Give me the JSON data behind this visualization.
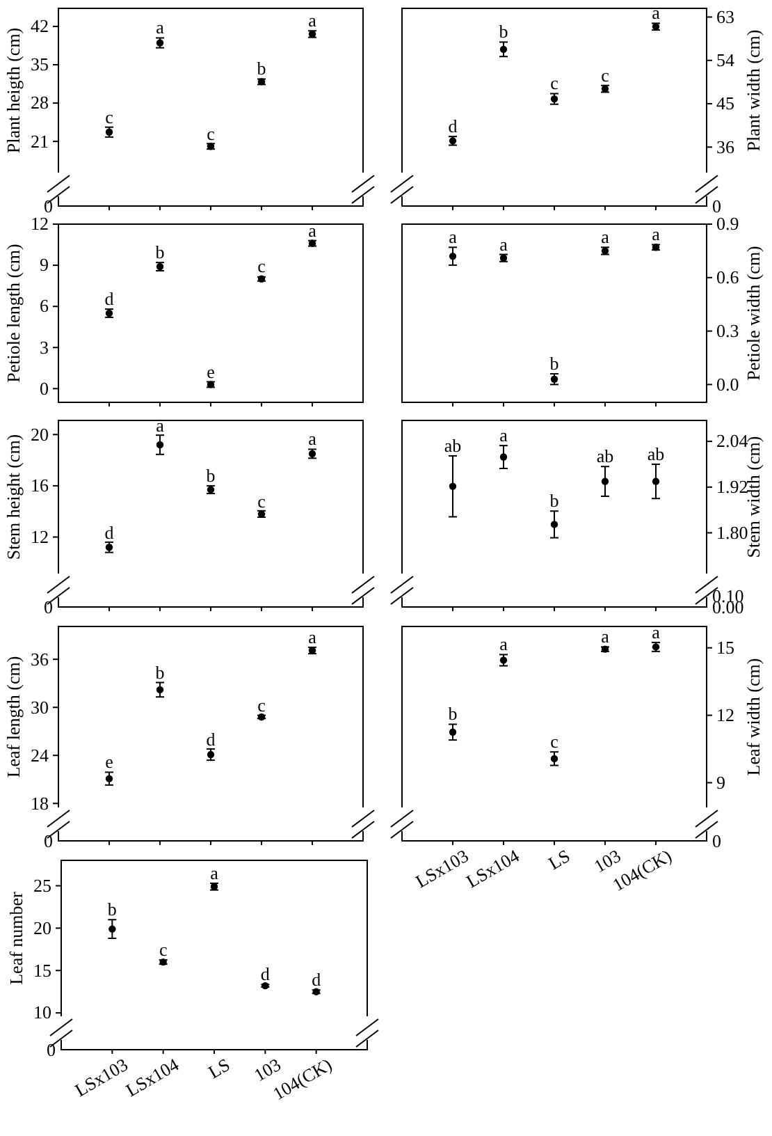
{
  "chart_data": [
    {
      "type": "scatter",
      "ylabel": "Plant heigth (cm)",
      "categories": [
        "LSx103",
        "LSx104",
        "LS",
        "103",
        "104(CK)"
      ],
      "values": [
        22.7,
        39.0,
        20.1,
        31.9,
        40.6
      ],
      "errors": [
        0.9,
        0.9,
        0.5,
        0.5,
        0.6
      ],
      "color": "#000000",
      "marker": "circle",
      "ylim": [
        15.3,
        45.3
      ],
      "yticks": [
        21,
        28,
        35,
        42
      ],
      "tick_labels": "y",
      "annotations": [
        "0",
        {
          "text": "c",
          "x": "LSx103",
          "y": 23.6
        },
        {
          "text": "a",
          "x": "LSx104",
          "y": 39.9
        },
        {
          "text": "c",
          "x": "LS",
          "y": 20.55
        },
        {
          "text": "b",
          "x": "103",
          "y": 32.4
        },
        {
          "text": "a",
          "x": "104(CK)",
          "y": 41.2
        }
      ]
    },
    {
      "type": "scatter",
      "ylabel": "Plant width (cm)",
      "categories": [
        "LSx103",
        "LSx104",
        "LS",
        "103",
        "104(CK)"
      ],
      "values": [
        37.3,
        56.3,
        46.0,
        48.1,
        61.0
      ],
      "errors": [
        0.9,
        1.5,
        1.1,
        0.7,
        0.7
      ],
      "color": "#000000",
      "marker": "circle",
      "ylim": [
        30.7,
        64.8
      ],
      "yticks": [
        36,
        45,
        54,
        63
      ],
      "tick_labels": "y",
      "annotations": [
        "0",
        {
          "text": "d",
          "x": "LSx103",
          "y": 38.2
        },
        {
          "text": "b",
          "x": "LSx104",
          "y": 57.8
        },
        {
          "text": "c",
          "x": "LS",
          "y": 47.1
        },
        {
          "text": "c",
          "x": "103",
          "y": 48.8
        },
        {
          "text": "a",
          "x": "104(CK)",
          "y": 61.7
        }
      ]
    },
    {
      "type": "scatter",
      "ylabel": "Petiole length (cm)",
      "categories": [
        "LSx103",
        "LSx104",
        "LS",
        "103",
        "104(CK)"
      ],
      "values": [
        5.5,
        8.9,
        0.3,
        8.0,
        10.6
      ],
      "errors": [
        0.3,
        0.3,
        0.2,
        0.15,
        0.2
      ],
      "color": "#000000",
      "marker": "circle",
      "ylim": [
        -1,
        12
      ],
      "yticks": [
        0,
        3,
        6,
        9,
        12
      ],
      "tick_labels": "y",
      "annotations": [
        {
          "text": "d",
          "x": "LSx103",
          "y": 5.78
        },
        {
          "text": "b",
          "x": "LSx104",
          "y": 9.2
        },
        {
          "text": "e",
          "x": "LS",
          "y": 0.45
        },
        {
          "text": "c",
          "x": "103",
          "y": 8.17
        },
        {
          "text": "a",
          "x": "104(CK)",
          "y": 10.77
        }
      ]
    },
    {
      "type": "scatter",
      "ylabel": "Petiole width (cm)",
      "categories": [
        "LSx103",
        "LSx104",
        "LS",
        "103",
        "104(CK)"
      ],
      "values": [
        0.72,
        0.71,
        0.03,
        0.75,
        0.77
      ],
      "errors": [
        0.05,
        0.02,
        0.03,
        0.02,
        0.015
      ],
      "color": "#000000",
      "marker": "circle",
      "ylim": [
        -0.1,
        0.9
      ],
      "yticks": [
        {
          "value": 0,
          "label": "0.0"
        },
        {
          "value": 0.3,
          "label": "0.3"
        },
        {
          "value": 0.6,
          "label": "0.6"
        },
        {
          "value": 0.9,
          "label": "0.9"
        }
      ],
      "tick_labels": "y",
      "annotations": [
        {
          "text": "a",
          "x": "LSx103",
          "y": 0.77
        },
        {
          "text": "a",
          "x": "LSx104",
          "y": 0.73
        },
        {
          "text": "b",
          "x": "LS",
          "y": 0.06
        },
        {
          "text": "a",
          "x": "103",
          "y": 0.77
        },
        {
          "text": "a",
          "x": "104(CK)",
          "y": 0.785
        }
      ]
    },
    {
      "type": "scatter",
      "ylabel": "Stem height (cm)",
      "categories": [
        "LSx103",
        "LSx104",
        "LS",
        "103",
        "104(CK)"
      ],
      "values": [
        11.2,
        19.2,
        15.7,
        13.8,
        18.5
      ],
      "errors": [
        0.4,
        0.75,
        0.3,
        0.25,
        0.35
      ],
      "color": "#000000",
      "marker": "circle",
      "ylim": [
        9.15,
        21.1
      ],
      "yticks": [
        12,
        16,
        20
      ],
      "tick_labels": "y",
      "annotations": [
        "0",
        {
          "text": "d",
          "x": "LSx103",
          "y": 11.55
        },
        {
          "text": "a",
          "x": "LSx104",
          "y": 19.9
        },
        {
          "text": "b",
          "x": "LS",
          "y": 16.0
        },
        {
          "text": "c",
          "x": "103",
          "y": 14.0
        },
        {
          "text": "a",
          "x": "104(CK)",
          "y": 18.85
        }
      ]
    },
    {
      "type": "scatter",
      "ylabel": "Stem width (cm)",
      "categories": [
        "LSx103",
        "LSx104",
        "LS",
        "103",
        "104(CK)"
      ],
      "values": [
        1.922,
        1.999,
        1.822,
        1.935,
        1.935
      ],
      "errors": [
        0.08,
        0.03,
        0.035,
        0.039,
        0.045
      ],
      "color": "#000000",
      "marker": "circle",
      "ylim": [
        1.693,
        2.095
      ],
      "yticks": [
        {
          "value": 1.8,
          "label": "1.80"
        },
        {
          "value": 1.92,
          "label": "1.92"
        },
        {
          "value": 2.04,
          "label": "2.04"
        }
      ],
      "tick_labels": "y",
      "annotations": [
        "0.10",
        "0.00",
        {
          "text": "ab",
          "x": "LSx103",
          "y": 2.002
        },
        {
          "text": "a",
          "x": "LSx104",
          "y": 2.029
        },
        {
          "text": "b",
          "x": "LS",
          "y": 1.857
        },
        {
          "text": "ab",
          "x": "103",
          "y": 1.974
        },
        {
          "text": "ab",
          "x": "104(CK)",
          "y": 1.98
        }
      ]
    },
    {
      "type": "scatter",
      "ylabel": "Leaf length (cm)",
      "categories": [
        "LSx103",
        "LSx104",
        "LS",
        "103",
        "104(CK)"
      ],
      "values": [
        21.1,
        32.2,
        24.1,
        28.8,
        37.1
      ],
      "errors": [
        0.8,
        0.9,
        0.7,
        0.2,
        0.4
      ],
      "color": "#000000",
      "marker": "circle",
      "ylim": [
        17.5,
        40.1
      ],
      "yticks": [
        18,
        24,
        30,
        36
      ],
      "tick_labels": "y",
      "annotations": [
        "0",
        {
          "text": "e",
          "x": "LSx103",
          "y": 21.9
        },
        {
          "text": "b",
          "x": "LSx104",
          "y": 33.1
        },
        {
          "text": "d",
          "x": "LS",
          "y": 24.75
        },
        {
          "text": "c",
          "x": "103",
          "y": 29.0
        },
        {
          "text": "a",
          "x": "104(CK)",
          "y": 37.5
        }
      ]
    },
    {
      "type": "scatter",
      "ylabel": "Leaf width (cm)",
      "categories": [
        "LSx103",
        "LSx104",
        "LS",
        "103",
        "104(CK)"
      ],
      "values": [
        11.25,
        14.45,
        10.07,
        14.94,
        15.04
      ],
      "errors": [
        0.35,
        0.25,
        0.3,
        0.1,
        0.2
      ],
      "color": "#000000",
      "marker": "circle",
      "ylim": [
        7.9,
        15.95
      ],
      "yticks": [
        9,
        12,
        15
      ],
      "annotations": [
        "0",
        {
          "text": "b",
          "x": "LSx103",
          "y": 11.6
        },
        {
          "text": "a",
          "x": "LSx104",
          "y": 14.7
        },
        {
          "text": "c",
          "x": "LS",
          "y": 10.37
        },
        {
          "text": "a",
          "x": "103",
          "y": 15.04
        },
        {
          "text": "a",
          "x": "104(CK)",
          "y": 15.24
        }
      ]
    },
    {
      "type": "scatter",
      "ylabel": "Leaf number",
      "categories": [
        "LSx103",
        "LSx104",
        "LS",
        "103",
        "104(CK)"
      ],
      "values": [
        19.9,
        16.0,
        24.9,
        13.2,
        12.5
      ],
      "errors": [
        1.1,
        0.25,
        0.4,
        0.15,
        0.2
      ],
      "color": "#000000",
      "marker": "circle",
      "ylim": [
        9.6,
        28
      ],
      "yticks": [
        10,
        15,
        20,
        25
      ],
      "annotations": [
        "0",
        {
          "text": "b",
          "x": "LSx103",
          "y": 21.0
        },
        {
          "text": "c",
          "x": "LSx104",
          "y": 16.25
        },
        {
          "text": "a",
          "x": "LS",
          "y": 25.3
        },
        {
          "text": "d",
          "x": "103",
          "y": 13.35
        },
        {
          "text": "d",
          "x": "104(CK)",
          "y": 12.7
        }
      ]
    }
  ]
}
